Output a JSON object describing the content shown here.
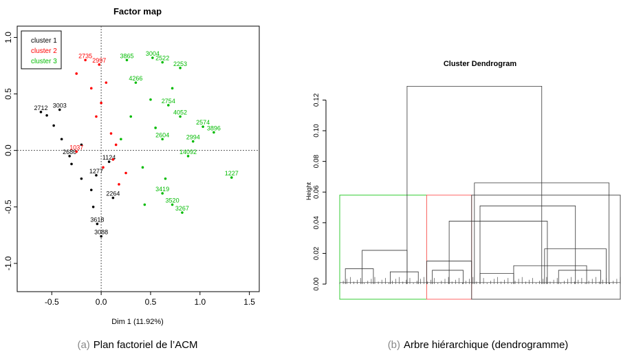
{
  "chart_data": [
    {
      "type": "scatter",
      "title": "Factor map",
      "xlabel": "Dim 1 (11.92%)",
      "ylabel": "",
      "xlim": [
        -0.85,
        1.6
      ],
      "ylim": [
        -1.25,
        1.1
      ],
      "xticks": [
        "-0.5",
        "0.0",
        "0.5",
        "1.0",
        "1.5"
      ],
      "yticks": [
        "-1.0",
        "-0.5",
        "0.0",
        "0.5",
        "1.0"
      ],
      "legend_position": "top-left",
      "reference_lines": {
        "x": 0,
        "y": 0
      },
      "series": [
        {
          "name": "cluster 1",
          "color": "#000000",
          "points": [
            {
              "x": -0.61,
              "y": 0.34,
              "label": "2712"
            },
            {
              "x": -0.42,
              "y": 0.36,
              "label": "3003"
            },
            {
              "x": -0.55,
              "y": 0.31,
              "label": ""
            },
            {
              "x": -0.48,
              "y": 0.22,
              "label": ""
            },
            {
              "x": -0.4,
              "y": 0.1,
              "label": ""
            },
            {
              "x": -0.32,
              "y": -0.05,
              "label": "2686"
            },
            {
              "x": -0.3,
              "y": -0.12,
              "label": ""
            },
            {
              "x": -0.2,
              "y": -0.25,
              "label": ""
            },
            {
              "x": -0.05,
              "y": -0.22,
              "label": "1277"
            },
            {
              "x": 0.12,
              "y": -0.42,
              "label": "2264"
            },
            {
              "x": -0.08,
              "y": -0.5,
              "label": ""
            },
            {
              "x": -0.04,
              "y": -0.65,
              "label": "3618"
            },
            {
              "x": 0.0,
              "y": -0.76,
              "label": "3088"
            },
            {
              "x": 0.08,
              "y": -0.1,
              "label": "1124"
            },
            {
              "x": -0.2,
              "y": 0.05,
              "label": ""
            },
            {
              "x": -0.1,
              "y": -0.35,
              "label": ""
            }
          ]
        },
        {
          "name": "cluster 2",
          "color": "#ff0000",
          "points": [
            {
              "x": -0.16,
              "y": 0.8,
              "label": "2735"
            },
            {
              "x": -0.02,
              "y": 0.76,
              "label": "2997"
            },
            {
              "x": -0.25,
              "y": 0.68,
              "label": ""
            },
            {
              "x": -0.1,
              "y": 0.55,
              "label": ""
            },
            {
              "x": 0.0,
              "y": 0.42,
              "label": ""
            },
            {
              "x": -0.05,
              "y": 0.3,
              "label": ""
            },
            {
              "x": 0.1,
              "y": 0.15,
              "label": ""
            },
            {
              "x": -0.25,
              "y": -0.01,
              "label": "1037"
            },
            {
              "x": 0.12,
              "y": -0.08,
              "label": ""
            },
            {
              "x": 0.25,
              "y": -0.2,
              "label": ""
            },
            {
              "x": 0.02,
              "y": -0.15,
              "label": ""
            },
            {
              "x": 0.18,
              "y": -0.3,
              "label": ""
            },
            {
              "x": 0.15,
              "y": 0.05,
              "label": ""
            },
            {
              "x": 0.05,
              "y": 0.6,
              "label": ""
            }
          ]
        },
        {
          "name": "cluster 3",
          "color": "#00bb00",
          "points": [
            {
              "x": 0.26,
              "y": 0.8,
              "label": "3865"
            },
            {
              "x": 0.52,
              "y": 0.82,
              "label": "3004"
            },
            {
              "x": 0.62,
              "y": 0.78,
              "label": "2522"
            },
            {
              "x": 0.8,
              "y": 0.73,
              "label": "2253"
            },
            {
              "x": 0.35,
              "y": 0.6,
              "label": "4266"
            },
            {
              "x": 0.72,
              "y": 0.55,
              "label": ""
            },
            {
              "x": 0.5,
              "y": 0.45,
              "label": ""
            },
            {
              "x": 0.68,
              "y": 0.4,
              "label": "2754"
            },
            {
              "x": 0.8,
              "y": 0.3,
              "label": "4052"
            },
            {
              "x": 1.03,
              "y": 0.21,
              "label": "2574"
            },
            {
              "x": 1.14,
              "y": 0.16,
              "label": "3896"
            },
            {
              "x": 0.93,
              "y": 0.08,
              "label": "2994"
            },
            {
              "x": 0.62,
              "y": 0.1,
              "label": "2604"
            },
            {
              "x": 0.88,
              "y": -0.05,
              "label": "14092"
            },
            {
              "x": 1.32,
              "y": -0.24,
              "label": "1227"
            },
            {
              "x": 0.62,
              "y": -0.38,
              "label": "3419"
            },
            {
              "x": 0.72,
              "y": -0.48,
              "label": "3520"
            },
            {
              "x": 0.82,
              "y": -0.55,
              "label": "3267"
            },
            {
              "x": 0.44,
              "y": -0.48,
              "label": ""
            },
            {
              "x": 0.3,
              "y": 0.3,
              "label": ""
            },
            {
              "x": 0.2,
              "y": 0.1,
              "label": ""
            },
            {
              "x": 0.55,
              "y": 0.2,
              "label": ""
            },
            {
              "x": 0.42,
              "y": -0.15,
              "label": ""
            },
            {
              "x": 0.65,
              "y": -0.25,
              "label": ""
            }
          ]
        }
      ]
    },
    {
      "type": "dendrogram",
      "title": "Cluster Dendrogram",
      "ylabel": "Height",
      "ylim": [
        0,
        0.135
      ],
      "yticks": [
        "0.00",
        "0.02",
        "0.04",
        "0.06",
        "0.08",
        "0.10",
        "0.12"
      ],
      "cut_height": 0.058,
      "cluster_boxes": [
        {
          "from": 0.0,
          "to": 0.31,
          "color": "#33cc33"
        },
        {
          "from": 0.31,
          "to": 0.47,
          "color": "#ff6666"
        },
        {
          "from": 0.47,
          "to": 1.0,
          "color": "#555555"
        }
      ],
      "merges": [
        {
          "x1": 0.24,
          "x2": 0.72,
          "h": 0.129
        },
        {
          "x1": 0.48,
          "x2": 0.96,
          "h": 0.066
        },
        {
          "x1": 0.5,
          "x2": 0.84,
          "h": 0.051
        },
        {
          "x1": 0.39,
          "x2": 0.74,
          "h": 0.041
        },
        {
          "x1": 0.73,
          "x2": 0.95,
          "h": 0.023
        },
        {
          "x1": 0.08,
          "x2": 0.24,
          "h": 0.022
        },
        {
          "x1": 0.31,
          "x2": 0.47,
          "h": 0.015
        },
        {
          "x1": 0.62,
          "x2": 0.88,
          "h": 0.012
        },
        {
          "x1": 0.02,
          "x2": 0.12,
          "h": 0.01
        },
        {
          "x1": 0.78,
          "x2": 0.93,
          "h": 0.009
        },
        {
          "x1": 0.33,
          "x2": 0.44,
          "h": 0.009
        },
        {
          "x1": 0.18,
          "x2": 0.28,
          "h": 0.008
        },
        {
          "x1": 0.5,
          "x2": 0.62,
          "h": 0.007
        }
      ]
    }
  ],
  "captions": [
    {
      "prefix": "(a)",
      "text": "Plan factoriel de l’ACM"
    },
    {
      "prefix": "(b)",
      "text": "Arbre hiérarchique (dendrogramme)"
    }
  ]
}
